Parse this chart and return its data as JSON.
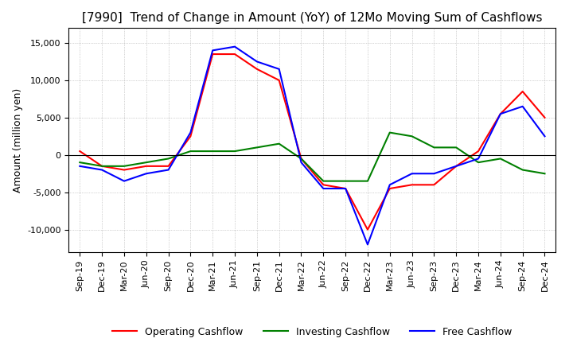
{
  "title": "[7990]  Trend of Change in Amount (YoY) of 12Mo Moving Sum of Cashflows",
  "ylabel": "Amount (million yen)",
  "xlim_labels": [
    "Sep-19",
    "Dec-19",
    "Mar-20",
    "Jun-20",
    "Sep-20",
    "Dec-20",
    "Mar-21",
    "Jun-21",
    "Sep-21",
    "Dec-21",
    "Mar-22",
    "Jun-22",
    "Sep-22",
    "Dec-22",
    "Mar-23",
    "Jun-23",
    "Sep-23",
    "Dec-23",
    "Mar-24",
    "Jun-24",
    "Sep-24",
    "Dec-24"
  ],
  "operating_cashflow": [
    500,
    -1500,
    -2000,
    -1500,
    -1500,
    2500,
    13500,
    13500,
    11500,
    10000,
    -500,
    -4000,
    -4500,
    -10000,
    -4500,
    -4000,
    -4000,
    -1500,
    500,
    5500,
    8500,
    5000
  ],
  "investing_cashflow": [
    -1000,
    -1500,
    -1500,
    -1000,
    -500,
    500,
    500,
    500,
    1000,
    1500,
    -500,
    -3500,
    -3500,
    -3500,
    3000,
    2500,
    1000,
    1000,
    -1000,
    -500,
    -2000,
    -2500
  ],
  "free_cashflow": [
    -1500,
    -2000,
    -3500,
    -2500,
    -2000,
    3000,
    14000,
    14500,
    12500,
    11500,
    -1000,
    -4500,
    -4500,
    -12000,
    -4000,
    -2500,
    -2500,
    -1500,
    -500,
    5500,
    6500,
    2500
  ],
  "operating_color": "#FF0000",
  "investing_color": "#008000",
  "free_color": "#0000FF",
  "ylim": [
    -13000,
    17000
  ],
  "yticks": [
    -10000,
    -5000,
    0,
    5000,
    10000,
    15000
  ],
  "grid_color": "#AAAAAA",
  "background_color": "#FFFFFF",
  "title_fontsize": 11,
  "axis_fontsize": 9,
  "tick_fontsize": 8,
  "legend_fontsize": 9
}
